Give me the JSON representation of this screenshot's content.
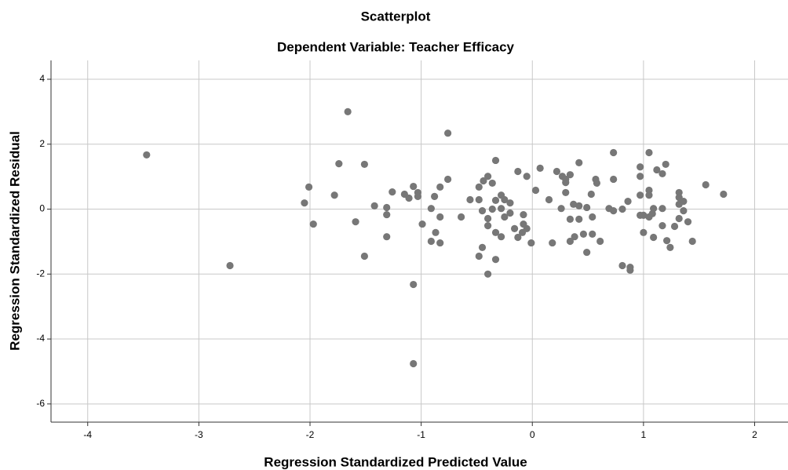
{
  "chart_data": {
    "type": "scatter",
    "title": "Scatterplot",
    "subtitle": "Dependent Variable: Teacher Efficacy",
    "x_label": "Regression Standardized Predicted Value",
    "y_label": "Regression Standardized Residual",
    "color": "#777777",
    "grid": true,
    "xlim": [
      -4.33,
      2.3
    ],
    "ylim": [
      -6.56,
      4.58
    ],
    "xticks": [
      -4,
      -3,
      -2,
      -1,
      0,
      1,
      2
    ],
    "yticks": [
      -6,
      -4,
      -2,
      0,
      2,
      4
    ],
    "x": [
      -3.47,
      -2.72,
      -1.66,
      -0.76,
      -2.05,
      -2.01,
      -1.97,
      -1.78,
      -1.74,
      -1.59,
      -1.51,
      -1.51,
      -1.42,
      -1.31,
      -1.31,
      -1.31,
      -1.26,
      -1.15,
      -1.11,
      -1.07,
      -1.03,
      -1.03,
      -1.07,
      -1.07,
      -0.99,
      -0.91,
      -0.91,
      -0.88,
      -0.87,
      -0.83,
      -0.83,
      -0.83,
      -0.76,
      -0.64,
      -0.56,
      -0.48,
      -0.48,
      -0.48,
      -0.45,
      -0.45,
      -0.44,
      -0.4,
      -0.4,
      -0.4,
      -0.4,
      -0.36,
      -0.36,
      -0.33,
      -0.33,
      -0.33,
      -0.33,
      -0.28,
      -0.28,
      -0.28,
      -0.25,
      -0.25,
      -0.2,
      -0.2,
      -0.16,
      -0.13,
      -0.13,
      -0.09,
      -0.08,
      -0.08,
      -0.05,
      -0.05,
      -0.01,
      0.03,
      0.07,
      0.15,
      0.18,
      0.22,
      0.26,
      0.27,
      0.3,
      0.3,
      0.3,
      0.34,
      0.34,
      0.34,
      0.37,
      0.38,
      0.42,
      0.42,
      0.42,
      0.46,
      0.49,
      0.49,
      0.53,
      0.54,
      0.54,
      0.57,
      0.58,
      0.61,
      0.69,
      0.73,
      0.73,
      0.73,
      0.81,
      0.81,
      0.86,
      0.88,
      0.88,
      0.97,
      0.97,
      0.97,
      0.97,
      1.0,
      1.0,
      1.05,
      1.05,
      1.05,
      1.05,
      1.08,
      1.09,
      1.09,
      1.12,
      1.17,
      1.17,
      1.17,
      1.2,
      1.21,
      1.24,
      1.28,
      1.32,
      1.32,
      1.32,
      1.32,
      1.36,
      1.36,
      1.4,
      1.44,
      1.56,
      1.72
    ],
    "values": [
      1.67,
      -1.74,
      3.0,
      2.34,
      0.19,
      0.68,
      -0.46,
      0.43,
      1.4,
      -0.39,
      1.38,
      -1.45,
      0.1,
      0.05,
      -0.17,
      -0.85,
      0.53,
      0.46,
      0.34,
      0.7,
      0.51,
      0.39,
      -2.32,
      -4.76,
      -0.46,
      0.02,
      -0.99,
      0.39,
      -0.72,
      -0.24,
      -1.04,
      0.68,
      0.92,
      -0.24,
      0.29,
      0.68,
      0.29,
      -1.45,
      -0.05,
      -1.18,
      0.87,
      1.01,
      -0.29,
      -0.51,
      -2.0,
      0.8,
      0.0,
      1.5,
      -1.55,
      0.27,
      -0.72,
      0.43,
      0.02,
      -0.85,
      -0.24,
      0.29,
      0.19,
      -0.12,
      -0.6,
      -0.87,
      1.16,
      -0.72,
      -0.17,
      -0.46,
      1.01,
      -0.6,
      -1.04,
      0.58,
      1.26,
      0.29,
      -1.04,
      1.16,
      0.02,
      1.01,
      0.82,
      0.51,
      0.92,
      1.06,
      -0.31,
      -0.99,
      0.15,
      -0.85,
      0.1,
      1.43,
      -0.31,
      -0.77,
      0.05,
      -1.33,
      0.46,
      -0.77,
      -0.24,
      0.92,
      0.8,
      -0.99,
      0.02,
      -0.05,
      1.74,
      0.92,
      0.0,
      -1.74,
      0.24,
      -1.79,
      -1.88,
      1.3,
      0.43,
      -0.19,
      1.01,
      -0.19,
      -0.72,
      1.74,
      0.58,
      0.43,
      -0.24,
      -0.14,
      0.02,
      -0.87,
      1.21,
      0.02,
      1.09,
      -0.51,
      1.38,
      -0.97,
      -1.18,
      -0.53,
      0.51,
      0.15,
      -0.29,
      0.36,
      0.24,
      -0.05,
      -0.39,
      -0.99,
      0.75,
      0.46
    ]
  }
}
